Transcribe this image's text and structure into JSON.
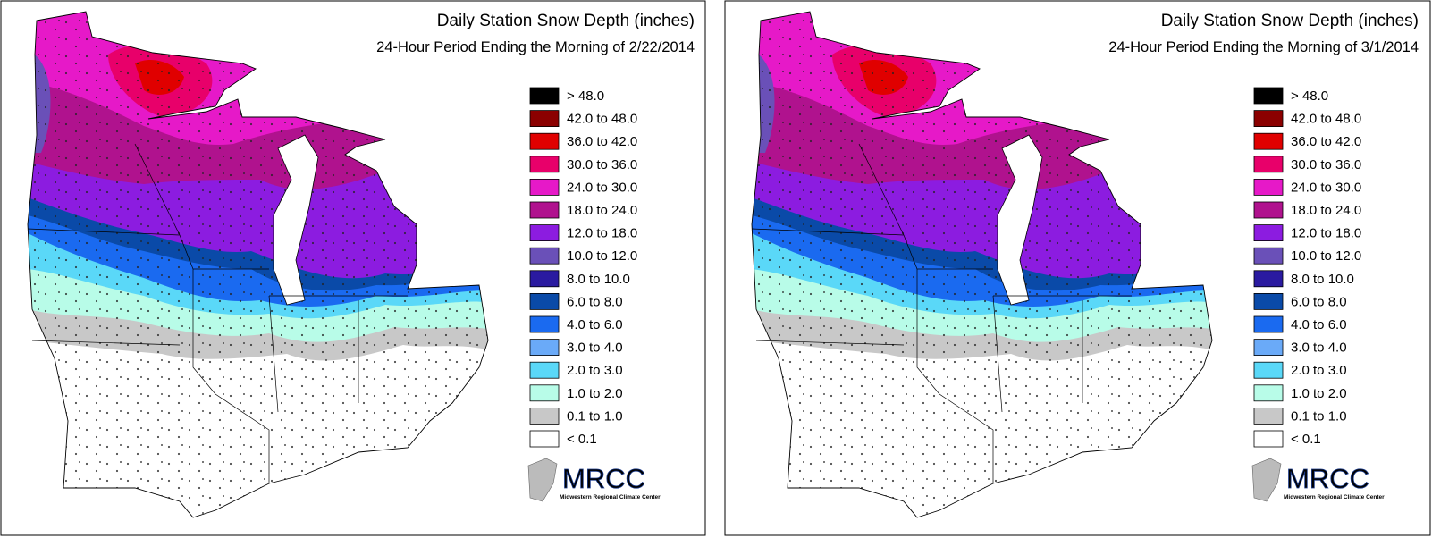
{
  "panels": [
    {
      "title": "Daily Station Snow Depth (inches)",
      "subtitle": "24-Hour Period Ending the Morning of 2/22/2014",
      "legend": [
        {
          "label": "> 48.0",
          "color": "#000000"
        },
        {
          "label": "42.0 to 48.0",
          "color": "#8b0000"
        },
        {
          "label": "36.0 to 42.0",
          "color": "#e00000"
        },
        {
          "label": "30.0 to 36.0",
          "color": "#e8006a"
        },
        {
          "label": "24.0 to 30.0",
          "color": "#e619c8"
        },
        {
          "label": "18.0 to 24.0",
          "color": "#b0128e"
        },
        {
          "label": "12.0 to 18.0",
          "color": "#8c1ce0"
        },
        {
          "label": "10.0 to 12.0",
          "color": "#6a50b8"
        },
        {
          "label": "8.0 to 10.0",
          "color": "#2a1aa0"
        },
        {
          "label": "6.0 to 8.0",
          "color": "#0a4aa8"
        },
        {
          "label": "4.0 to 6.0",
          "color": "#1a6af0"
        },
        {
          "label": "3.0 to 4.0",
          "color": "#6aaaf8"
        },
        {
          "label": "2.0 to 3.0",
          "color": "#5ad8f8"
        },
        {
          "label": "1.0 to 2.0",
          "color": "#b8fce8"
        },
        {
          "label": "0.1 to 1.0",
          "color": "#c8c8c8"
        },
        {
          "label": "<  0.1",
          "color": "#ffffff"
        }
      ],
      "logo": {
        "name": "MRCC",
        "caption": "Midwestern Regional Climate Center"
      }
    },
    {
      "title": "Daily Station Snow Depth (inches)",
      "subtitle": "24-Hour Period Ending the Morning of 3/1/2014",
      "legend": [
        {
          "label": "> 48.0",
          "color": "#000000"
        },
        {
          "label": "42.0 to 48.0",
          "color": "#8b0000"
        },
        {
          "label": "36.0 to 42.0",
          "color": "#e00000"
        },
        {
          "label": "30.0 to 36.0",
          "color": "#e8006a"
        },
        {
          "label": "24.0 to 30.0",
          "color": "#e619c8"
        },
        {
          "label": "18.0 to 24.0",
          "color": "#b0128e"
        },
        {
          "label": "12.0 to 18.0",
          "color": "#8c1ce0"
        },
        {
          "label": "10.0 to 12.0",
          "color": "#6a50b8"
        },
        {
          "label": "8.0 to 10.0",
          "color": "#2a1aa0"
        },
        {
          "label": "6.0 to 8.0",
          "color": "#0a4aa8"
        },
        {
          "label": "4.0 to 6.0",
          "color": "#1a6af0"
        },
        {
          "label": "3.0 to 4.0",
          "color": "#6aaaf8"
        },
        {
          "label": "2.0 to 3.0",
          "color": "#5ad8f8"
        },
        {
          "label": "1.0 to 2.0",
          "color": "#b8fce8"
        },
        {
          "label": "0.1 to 1.0",
          "color": "#c8c8c8"
        },
        {
          "label": "<  0.1",
          "color": "#ffffff"
        }
      ],
      "logo": {
        "name": "MRCC",
        "caption": "Midwestern Regional Climate Center"
      }
    }
  ]
}
